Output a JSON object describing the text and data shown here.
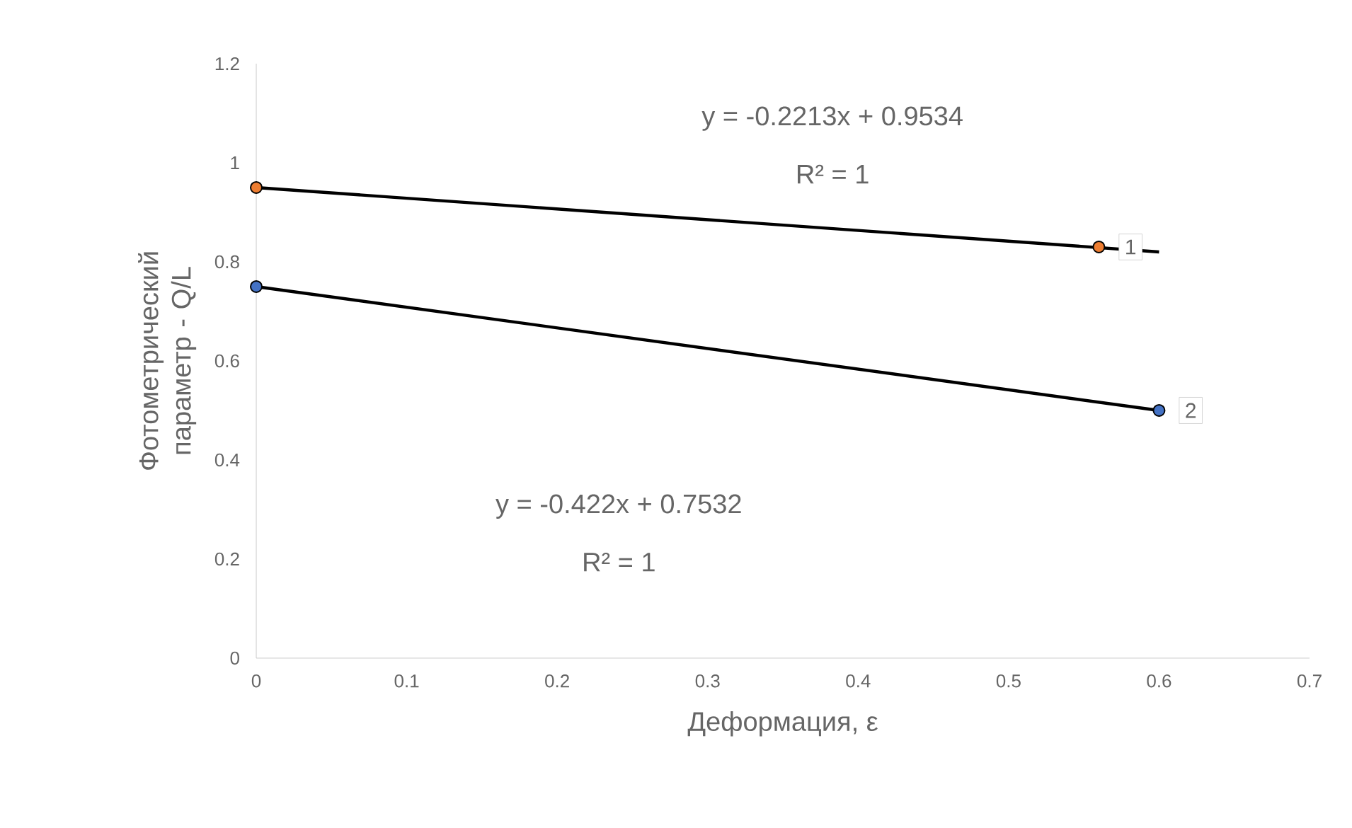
{
  "chart_data": {
    "type": "scatter",
    "xlabel": "Деформация, ε",
    "ylabel": "Фотометрический параметр - Q/L",
    "xlim": [
      0,
      0.7
    ],
    "xticks": [
      0,
      0.1,
      0.2,
      0.3,
      0.4,
      0.5,
      0.6,
      0.7
    ],
    "ylim": [
      0,
      1.2
    ],
    "yticks": [
      0,
      0.2,
      0.4,
      0.6,
      0.8,
      1,
      1.2
    ],
    "grid": false,
    "legend": false,
    "series": [
      {
        "name": "1",
        "marker": "circle",
        "color": "#ed7d31",
        "x": [
          0,
          0.56
        ],
        "values": [
          0.95,
          0.83
        ]
      },
      {
        "name": "2",
        "marker": "circle",
        "color": "#4472c4",
        "x": [
          0,
          0.6
        ],
        "values": [
          0.75,
          0.5
        ]
      },
      {
        "type": "line",
        "marker": "none",
        "color": "#000000",
        "x": [
          0,
          0.6
        ],
        "values": [
          0.95,
          0.82
        ]
      },
      {
        "type": "line",
        "marker": "none",
        "color": "#000000",
        "x": [
          0,
          0.6
        ],
        "values": [
          0.75,
          0.5
        ]
      }
    ],
    "annotations": [
      "y = -0.2213x + 0.9534",
      "R² = 1",
      "y = -0.422x + 0.7532",
      "R² = 1"
    ]
  }
}
